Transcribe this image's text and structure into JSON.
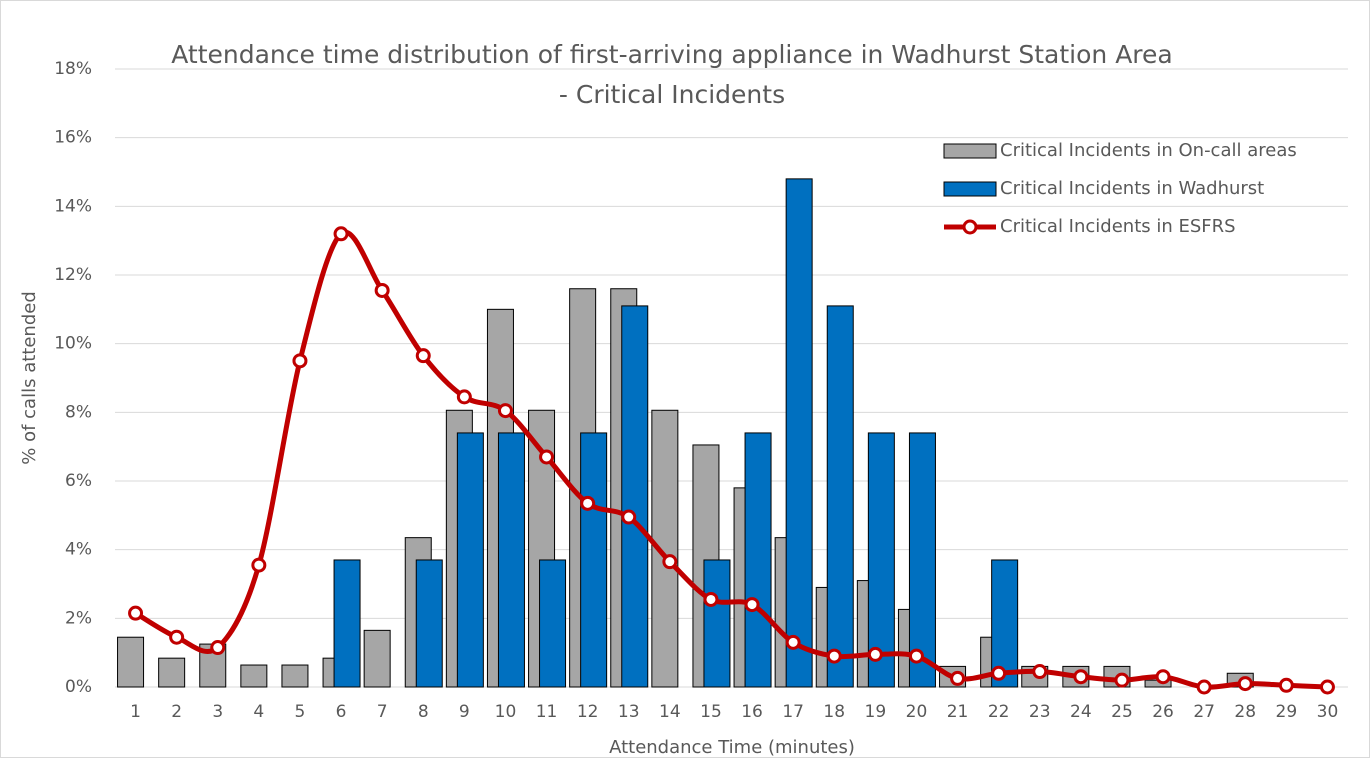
{
  "chart_data": {
    "type": "bar_line",
    "title": [
      "Attendance time distribution of first-arriving appliance in Wadhurst Station Area",
      "- Critical Incidents"
    ],
    "x_label": "Attendance Time (minutes)",
    "y_label": "% of calls attended",
    "categories": [
      "1",
      "2",
      "3",
      "4",
      "5",
      "6",
      "7",
      "8",
      "9",
      "10",
      "11",
      "12",
      "13",
      "14",
      "15",
      "16",
      "17",
      "18",
      "19",
      "20",
      "21",
      "22",
      "23",
      "24",
      "25",
      "26",
      "27",
      "28",
      "29",
      "30"
    ],
    "series": [
      {
        "name": "Critical Incidents in On-call areas",
        "type": "bar",
        "color": "#a6a6a6",
        "values": [
          1.45,
          0.84,
          1.25,
          0.64,
          0.64,
          0.84,
          1.65,
          4.35,
          8.06,
          11.0,
          8.06,
          11.6,
          11.6,
          8.06,
          7.05,
          5.8,
          4.35,
          2.9,
          3.1,
          2.26,
          0.6,
          1.45,
          0.6,
          0.6,
          0.6,
          0.2,
          0,
          0.4,
          0,
          0
        ]
      },
      {
        "name": "Critical Incidents in Wadhurst",
        "type": "bar",
        "color": "#0070c0",
        "values": [
          0,
          0,
          0,
          0,
          0,
          3.7,
          0,
          3.7,
          7.4,
          7.4,
          3.7,
          7.4,
          11.1,
          0,
          3.7,
          7.4,
          14.8,
          11.1,
          7.4,
          7.4,
          0,
          3.7,
          0,
          0,
          0,
          0,
          0,
          0,
          0,
          0
        ]
      },
      {
        "name": "Critical Incidents in ESFRS",
        "type": "line",
        "color": "#c00000",
        "values": [
          2.15,
          1.45,
          1.15,
          3.55,
          9.5,
          13.2,
          11.55,
          9.65,
          8.45,
          8.05,
          6.7,
          5.35,
          4.95,
          3.65,
          2.55,
          2.4,
          1.3,
          0.9,
          0.95,
          0.9,
          0.25,
          0.4,
          0.45,
          0.3,
          0.2,
          0.3,
          0,
          0.1,
          0.05,
          0
        ]
      }
    ],
    "ylim": [
      0,
      18
    ],
    "yticks": [
      {
        "value": 0,
        "label": "0%"
      },
      {
        "value": 2,
        "label": "2%"
      },
      {
        "value": 4,
        "label": "4%"
      },
      {
        "value": 6,
        "label": "6%"
      },
      {
        "value": 8,
        "label": "8%"
      },
      {
        "value": 10,
        "label": "10%"
      },
      {
        "value": 12,
        "label": "12%"
      },
      {
        "value": 14,
        "label": "14%"
      },
      {
        "value": 16,
        "label": "16%"
      },
      {
        "value": 18,
        "label": "18%"
      }
    ],
    "grid": true,
    "legend": "top-right"
  }
}
